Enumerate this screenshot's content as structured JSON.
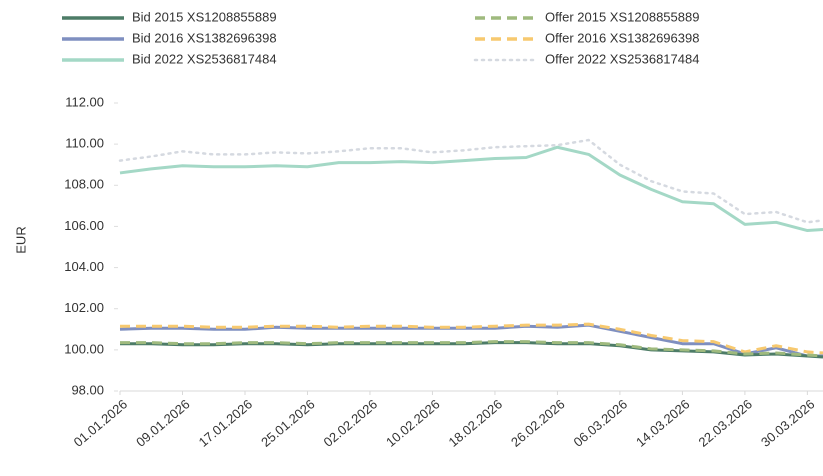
{
  "chart_data": {
    "type": "line",
    "y_label": "EUR",
    "x": [
      "01.01.2026",
      "05.01.2026",
      "09.01.2026",
      "13.01.2026",
      "17.01.2026",
      "21.01.2026",
      "25.01.2026",
      "29.01.2026",
      "02.02.2026",
      "06.02.2026",
      "10.02.2026",
      "14.02.2026",
      "18.02.2026",
      "22.02.2026",
      "26.02.2026",
      "02.03.2026",
      "06.03.2026",
      "10.03.2026",
      "14.03.2026",
      "18.03.2026",
      "22.03.2026",
      "26.03.2026",
      "30.03.2026",
      "01.04.2026"
    ],
    "xlim": [
      "01.01.2026",
      "01.04.2026"
    ],
    "xticks": [
      "01.01.2026",
      "09.01.2026",
      "17.01.2026",
      "25.01.2026",
      "02.02.2026",
      "10.02.2026",
      "18.02.2026",
      "26.02.2026",
      "06.03.2026",
      "14.03.2026",
      "22.03.2026",
      "30.03.2026"
    ],
    "ylim": [
      98,
      112
    ],
    "yticks": [
      {
        "value": 98,
        "label": "98.00"
      },
      {
        "value": 100,
        "label": "100.00"
      },
      {
        "value": 102,
        "label": "102.00"
      },
      {
        "value": 104,
        "label": "104.00"
      },
      {
        "value": 106,
        "label": "106.00"
      },
      {
        "value": 108,
        "label": "108.00"
      },
      {
        "value": 110,
        "label": "110.00"
      },
      {
        "value": 112,
        "label": "112.00"
      }
    ],
    "grid": false,
    "series": [
      {
        "name": "Bid 2015 XS1208855889",
        "color": "#4d7c67",
        "dash": "solid",
        "values": [
          100.3,
          100.3,
          100.25,
          100.25,
          100.3,
          100.3,
          100.25,
          100.3,
          100.3,
          100.3,
          100.3,
          100.3,
          100.35,
          100.35,
          100.3,
          100.3,
          100.2,
          100.0,
          99.95,
          99.9,
          99.75,
          99.8,
          99.7,
          99.65
        ]
      },
      {
        "name": "Bid 2016 XS1382696398",
        "color": "#7f8fc0",
        "dash": "solid",
        "values": [
          101.0,
          101.05,
          101.05,
          101.0,
          101.0,
          101.1,
          101.05,
          101.05,
          101.05,
          101.05,
          101.05,
          101.05,
          101.05,
          101.15,
          101.1,
          101.2,
          100.9,
          100.6,
          100.3,
          100.3,
          99.8,
          100.1,
          99.7,
          99.7
        ]
      },
      {
        "name": "Bid 2022 XS2536817484",
        "color": "#a4d8c6",
        "dash": "solid",
        "values": [
          108.6,
          108.8,
          108.95,
          108.9,
          108.9,
          108.95,
          108.9,
          109.1,
          109.1,
          109.15,
          109.1,
          109.2,
          109.3,
          109.35,
          109.85,
          109.5,
          108.5,
          107.8,
          107.2,
          107.1,
          106.1,
          106.2,
          105.8,
          105.85
        ]
      },
      {
        "name": "Offer 2015 XS1208855889",
        "color": "#9fba7e",
        "dash": "dashed",
        "values": [
          100.35,
          100.35,
          100.3,
          100.3,
          100.35,
          100.35,
          100.3,
          100.35,
          100.35,
          100.35,
          100.35,
          100.35,
          100.4,
          100.4,
          100.35,
          100.35,
          100.25,
          100.05,
          100.0,
          99.95,
          99.8,
          99.85,
          99.75,
          99.7
        ]
      },
      {
        "name": "Offer 2016 XS1382696398",
        "color": "#f7c96f",
        "dash": "dashed",
        "values": [
          101.15,
          101.15,
          101.15,
          101.1,
          101.1,
          101.15,
          101.15,
          101.1,
          101.15,
          101.15,
          101.1,
          101.1,
          101.15,
          101.2,
          101.2,
          101.25,
          101.0,
          100.7,
          100.45,
          100.4,
          99.9,
          100.2,
          99.9,
          99.85
        ]
      },
      {
        "name": "Offer 2022 XS2536817484",
        "color": "#d5d9e0",
        "dash": "dotted",
        "values": [
          109.2,
          109.4,
          109.65,
          109.5,
          109.5,
          109.6,
          109.55,
          109.65,
          109.8,
          109.8,
          109.6,
          109.7,
          109.85,
          109.9,
          109.95,
          110.2,
          109.0,
          108.2,
          107.7,
          107.6,
          106.6,
          106.7,
          106.2,
          106.3
        ]
      }
    ]
  }
}
